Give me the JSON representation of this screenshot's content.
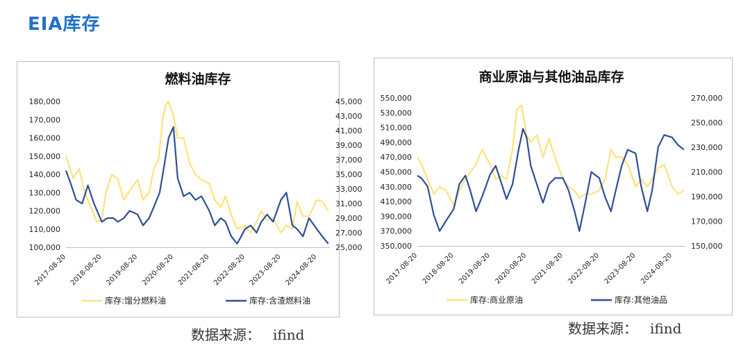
{
  "page_title": "EIA库存",
  "colors": {
    "yellow": "#FFE27A",
    "navy": "#2F4E96",
    "title_blue": "#1F6FC8"
  },
  "source": {
    "label": "数据来源：",
    "value": "ifind"
  },
  "chart_data": [
    {
      "type": "line",
      "title": "燃料油库存",
      "x_tick_labels": [
        "2017-08-20",
        "2018-08-20",
        "2019-08-20",
        "2020-08-20",
        "2021-08-20",
        "2022-08-20",
        "2023-08-20",
        "2024-08-20"
      ],
      "xlim": [
        "2017-08-20",
        "2024-12-31"
      ],
      "left_axis": {
        "ylim": [
          100000,
          180000
        ],
        "tick_labels": [
          "100,000",
          "110,000",
          "120,000",
          "130,000",
          "140,000",
          "150,000",
          "160,000",
          "170,000",
          "180,000"
        ]
      },
      "right_axis": {
        "ylim": [
          25000,
          45000
        ],
        "tick_labels": [
          "25,000",
          "27,000",
          "29,000",
          "31,000",
          "33,000",
          "35,000",
          "37,000",
          "39,000",
          "41,000",
          "43,000",
          "45,000"
        ]
      },
      "grid": false,
      "legend_position": "bottom",
      "series": [
        {
          "name": "库存:馏分燃料油",
          "axis": "left",
          "color": "#FFE27A",
          "x": [
            "2017-08-20",
            "2017-11-01",
            "2018-01-01",
            "2018-03-01",
            "2018-05-01",
            "2018-07-01",
            "2018-08-20",
            "2018-10-01",
            "2018-12-01",
            "2019-02-01",
            "2019-04-01",
            "2019-06-01",
            "2019-08-20",
            "2019-10-15",
            "2019-12-15",
            "2020-02-01",
            "2020-03-20",
            "2020-05-01",
            "2020-06-01",
            "2020-07-01",
            "2020-08-20",
            "2020-10-01",
            "2020-12-01",
            "2021-02-01",
            "2021-04-01",
            "2021-06-01",
            "2021-08-20",
            "2021-10-15",
            "2021-12-15",
            "2022-02-01",
            "2022-04-01",
            "2022-06-01",
            "2022-08-20",
            "2022-10-15",
            "2022-12-15",
            "2023-02-01",
            "2023-04-01",
            "2023-06-01",
            "2023-08-20",
            "2023-10-15",
            "2023-12-15",
            "2024-02-01",
            "2024-04-01",
            "2024-06-01",
            "2024-08-20",
            "2024-10-15",
            "2024-12-15"
          ],
          "y": [
            150000,
            138000,
            143000,
            130000,
            122000,
            114000,
            115000,
            130000,
            140000,
            137000,
            126000,
            131000,
            137000,
            126000,
            130000,
            143000,
            148000,
            170000,
            178000,
            180000,
            172000,
            160000,
            160000,
            146000,
            140000,
            137000,
            135000,
            126000,
            122000,
            128000,
            118000,
            110000,
            112000,
            108000,
            114000,
            120000,
            115000,
            116000,
            108000,
            112000,
            110000,
            125000,
            117000,
            117000,
            126000,
            125000,
            120000
          ]
        },
        {
          "name": "库存:含渣燃料油",
          "axis": "right",
          "color": "#2F4E96",
          "x": [
            "2017-08-20",
            "2017-10-01",
            "2017-12-01",
            "2018-02-01",
            "2018-04-01",
            "2018-06-01",
            "2018-08-20",
            "2018-10-15",
            "2018-12-15",
            "2019-02-01",
            "2019-04-01",
            "2019-06-01",
            "2019-08-20",
            "2019-10-15",
            "2019-12-15",
            "2020-02-01",
            "2020-04-01",
            "2020-05-15",
            "2020-07-01",
            "2020-08-20",
            "2020-10-01",
            "2020-12-01",
            "2021-02-01",
            "2021-04-01",
            "2021-06-01",
            "2021-08-20",
            "2021-10-15",
            "2021-12-15",
            "2022-02-01",
            "2022-04-01",
            "2022-06-01",
            "2022-08-20",
            "2022-10-15",
            "2022-12-15",
            "2023-02-01",
            "2023-04-01",
            "2023-06-01",
            "2023-08-20",
            "2023-10-15",
            "2023-12-15",
            "2024-02-01",
            "2024-04-01",
            "2024-06-01",
            "2024-08-20",
            "2024-10-15",
            "2024-12-15"
          ],
          "y": [
            35500,
            34000,
            31500,
            31000,
            33500,
            31000,
            28500,
            29000,
            29000,
            28500,
            29000,
            30000,
            29500,
            28000,
            29000,
            30500,
            32500,
            36000,
            40000,
            41500,
            34500,
            32000,
            32500,
            31500,
            32000,
            30000,
            28000,
            29000,
            28500,
            26500,
            25500,
            27500,
            28000,
            27000,
            28500,
            29500,
            28500,
            31500,
            32500,
            28000,
            27500,
            26500,
            29000,
            27500,
            26500,
            25500
          ]
        }
      ]
    },
    {
      "type": "line",
      "title": "商业原油与其他油品库存",
      "x_tick_labels": [
        "2017-08-20",
        "2018-08-20",
        "2019-08-20",
        "2020-08-20",
        "2021-08-20",
        "2022-08-20",
        "2023-08-20",
        "2024-08-20"
      ],
      "xlim": [
        "2017-08-20",
        "2024-12-31"
      ],
      "left_axis": {
        "ylim": [
          350000,
          550000
        ],
        "tick_labels": [
          "350,000",
          "370,000",
          "390,000",
          "410,000",
          "430,000",
          "450,000",
          "470,000",
          "490,000",
          "510,000",
          "530,000",
          "550,000"
        ]
      },
      "right_axis": {
        "ylim": [
          150000,
          270000
        ],
        "tick_labels": [
          "150,000",
          "170,000",
          "190,000",
          "210,000",
          "230,000",
          "250,000",
          "270,000"
        ]
      },
      "grid": false,
      "legend_position": "bottom",
      "series": [
        {
          "name": "库存:商业原油",
          "axis": "left",
          "color": "#FFE27A",
          "x": [
            "2017-08-20",
            "2017-10-01",
            "2017-12-01",
            "2018-02-01",
            "2018-04-01",
            "2018-06-01",
            "2018-08-20",
            "2018-10-15",
            "2018-12-15",
            "2019-02-01",
            "2019-04-01",
            "2019-06-01",
            "2019-08-20",
            "2019-10-15",
            "2019-12-15",
            "2020-02-01",
            "2020-04-01",
            "2020-05-15",
            "2020-07-01",
            "2020-08-20",
            "2020-10-01",
            "2020-12-01",
            "2021-02-01",
            "2021-04-01",
            "2021-06-01",
            "2021-08-20",
            "2021-10-15",
            "2021-12-15",
            "2022-02-01",
            "2022-04-01",
            "2022-06-01",
            "2022-08-20",
            "2022-10-15",
            "2022-12-15",
            "2023-02-01",
            "2023-04-01",
            "2023-06-01",
            "2023-08-20",
            "2023-10-15",
            "2023-12-15",
            "2024-02-01",
            "2024-04-01",
            "2024-06-01",
            "2024-08-20",
            "2024-10-15",
            "2024-12-15"
          ],
          "y": [
            470000,
            460000,
            440000,
            420000,
            430000,
            425000,
            405000,
            425000,
            440000,
            450000,
            460000,
            480000,
            460000,
            440000,
            445000,
            440000,
            480000,
            535000,
            540000,
            500000,
            490000,
            500000,
            470000,
            495000,
            470000,
            440000,
            430000,
            425000,
            415000,
            420000,
            420000,
            425000,
            440000,
            480000,
            470000,
            470000,
            460000,
            430000,
            440000,
            430000,
            440000,
            455000,
            460000,
            430000,
            420000,
            425000
          ]
        },
        {
          "name": "库存:其他油品",
          "axis": "right",
          "color": "#2F4E96",
          "x": [
            "2017-08-20",
            "2017-10-01",
            "2017-12-01",
            "2018-02-01",
            "2018-04-01",
            "2018-06-01",
            "2018-08-20",
            "2018-10-15",
            "2018-12-15",
            "2019-02-01",
            "2019-04-01",
            "2019-06-01",
            "2019-08-20",
            "2019-10-15",
            "2019-12-15",
            "2020-02-01",
            "2020-04-01",
            "2020-06-01",
            "2020-07-15",
            "2020-08-20",
            "2020-10-01",
            "2020-12-01",
            "2021-02-01",
            "2021-04-01",
            "2021-06-01",
            "2021-08-20",
            "2021-10-15",
            "2021-12-15",
            "2022-02-01",
            "2022-04-01",
            "2022-06-01",
            "2022-08-20",
            "2022-10-15",
            "2022-12-15",
            "2023-02-01",
            "2023-04-01",
            "2023-06-01",
            "2023-08-20",
            "2023-10-15",
            "2023-12-15",
            "2024-02-01",
            "2024-04-01",
            "2024-06-01",
            "2024-08-20",
            "2024-10-15",
            "2024-12-15"
          ],
          "y": [
            207000,
            205000,
            198000,
            175000,
            162000,
            170000,
            180000,
            200000,
            207000,
            195000,
            178000,
            190000,
            208000,
            215000,
            200000,
            188000,
            200000,
            228000,
            245000,
            238000,
            215000,
            200000,
            185000,
            200000,
            205000,
            205000,
            195000,
            178000,
            162000,
            185000,
            210000,
            205000,
            190000,
            178000,
            195000,
            215000,
            228000,
            225000,
            198000,
            178000,
            195000,
            230000,
            240000,
            238000,
            232000,
            228000
          ]
        }
      ]
    }
  ]
}
